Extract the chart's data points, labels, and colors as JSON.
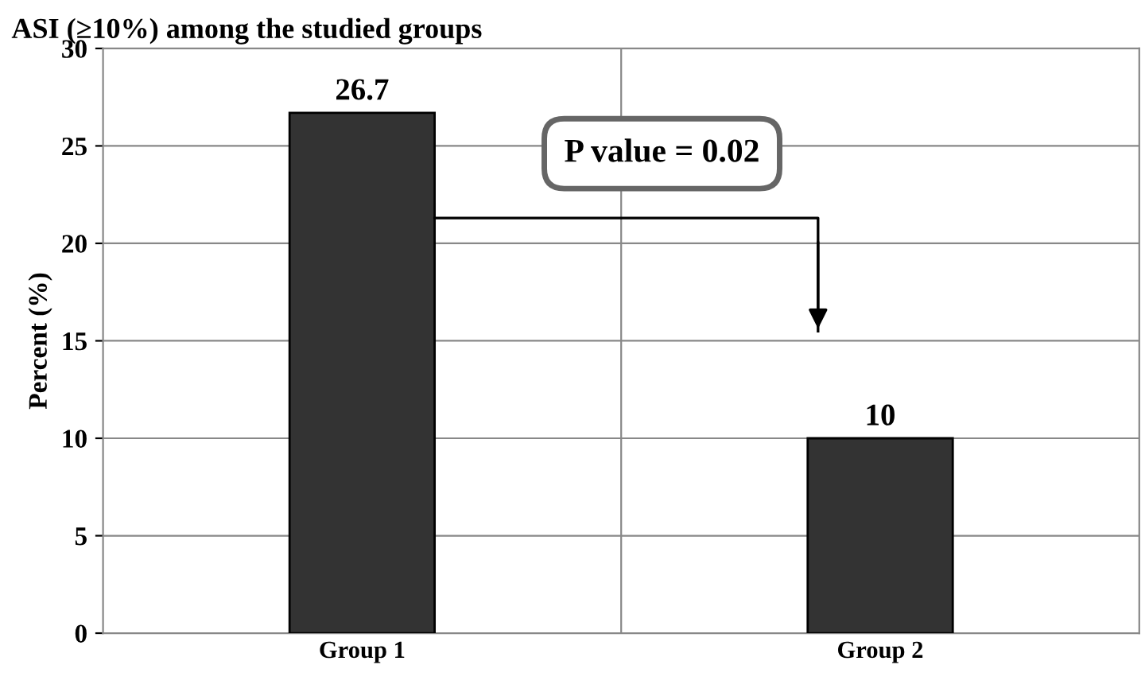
{
  "chart_data": {
    "type": "bar",
    "title": "ASI (≥10%) among the studied groups",
    "ylabel": "Percent (%)",
    "categories": [
      "Group 1",
      "Group 2"
    ],
    "values": [
      26.7,
      10
    ],
    "color": "#333333",
    "ylim": [
      0,
      30
    ],
    "yticks": [
      0,
      5,
      10,
      15,
      20,
      25,
      30
    ],
    "grid": true,
    "data_labels": true,
    "annotations": [
      "P value = 0.02"
    ]
  }
}
